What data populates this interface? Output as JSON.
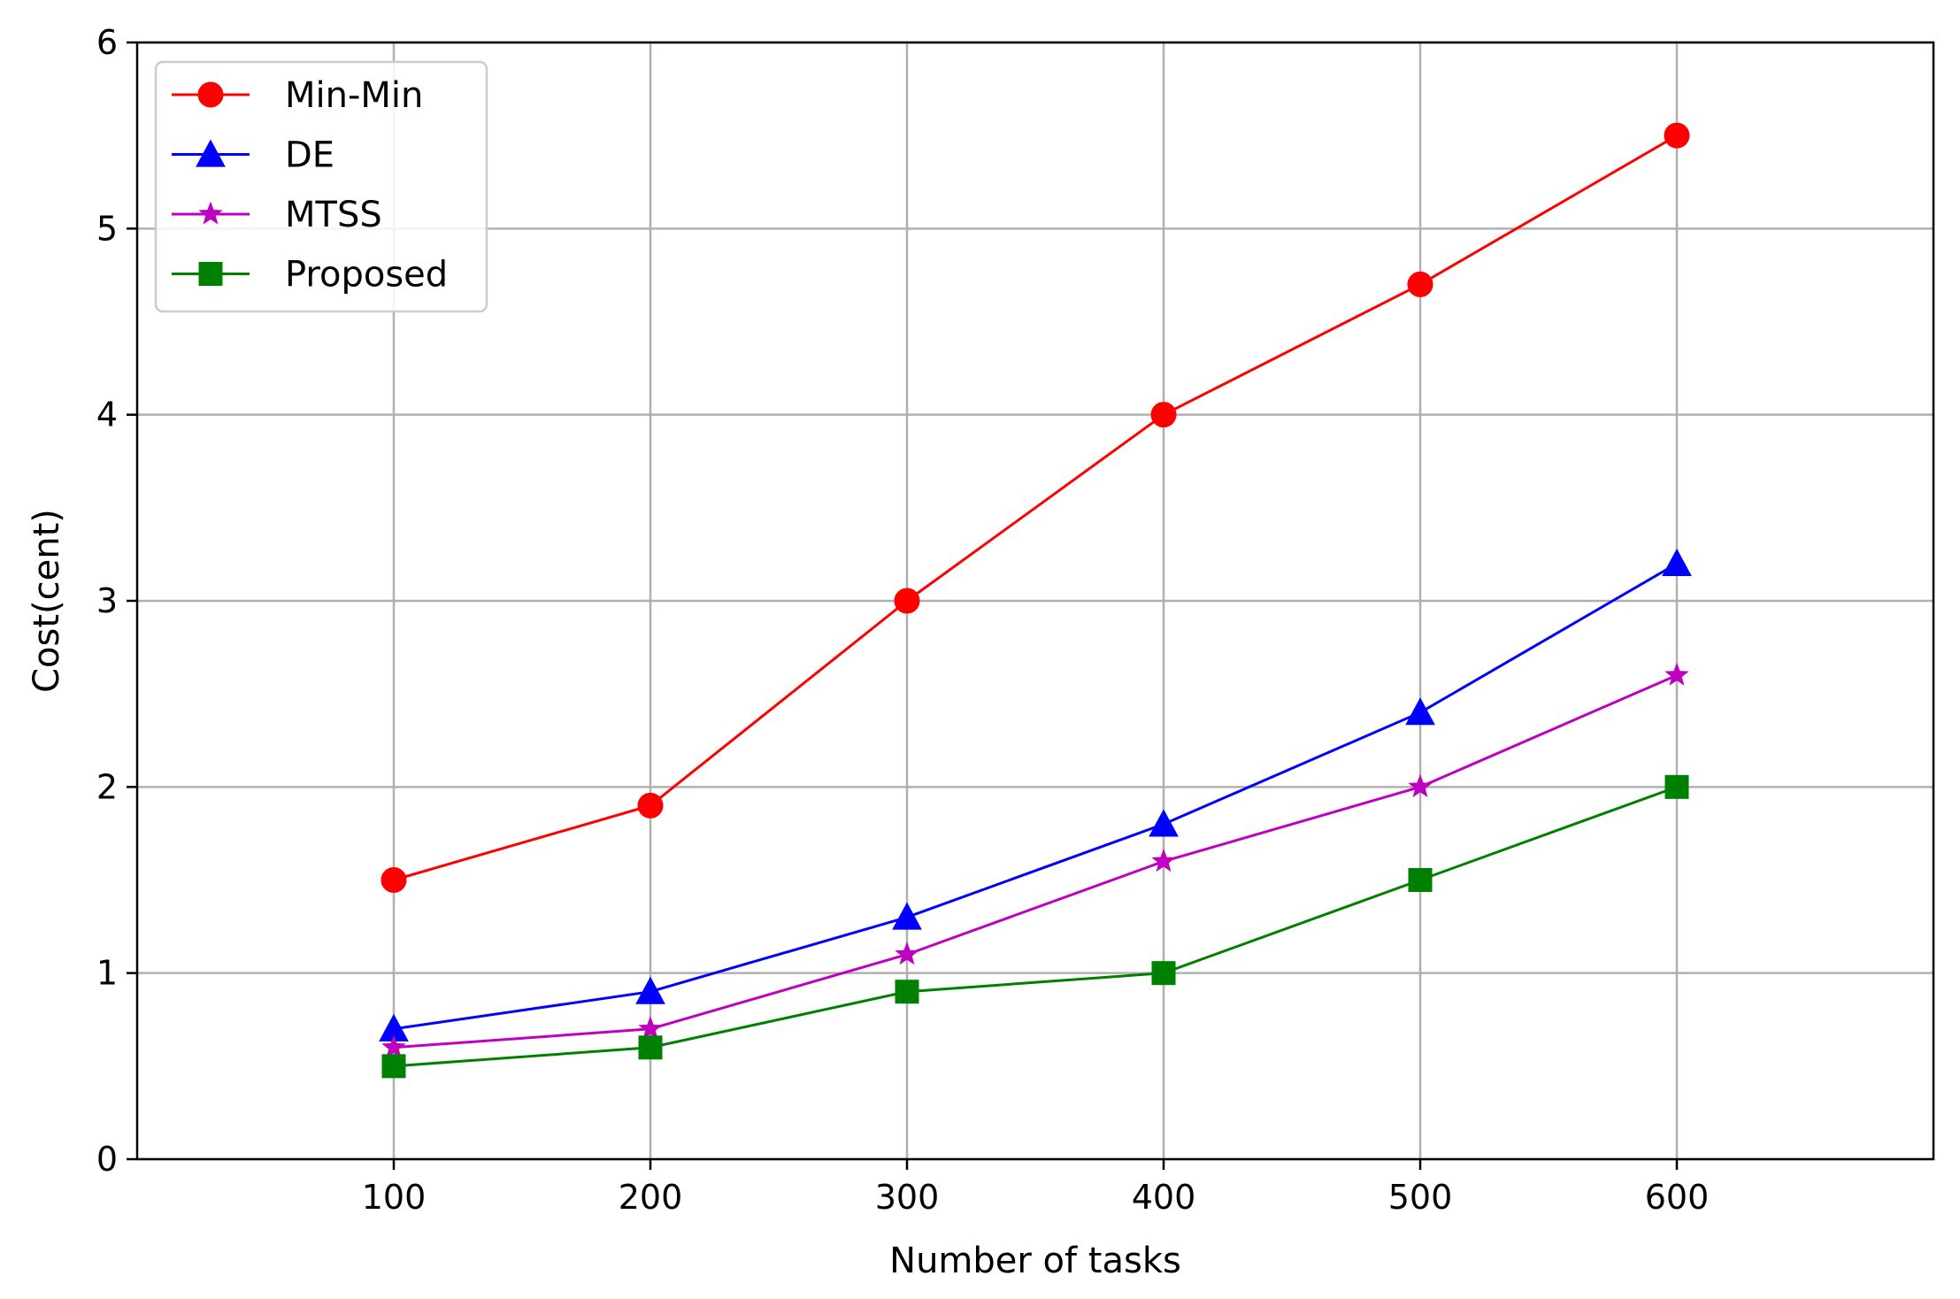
{
  "chart_data": {
    "type": "line",
    "title": "",
    "xlabel": "Number of tasks",
    "ylabel": "Cost(cent)",
    "x": [
      100,
      200,
      300,
      400,
      500,
      600
    ],
    "xticks": [
      "100",
      "200",
      "300",
      "400",
      "500",
      "600"
    ],
    "yticks": [
      "0",
      "1",
      "2",
      "3",
      "4",
      "5",
      "6"
    ],
    "xlim": [
      0,
      700
    ],
    "ylim": [
      0,
      6
    ],
    "grid": true,
    "legend_position": "top-left",
    "series": [
      {
        "name": "Min-Min",
        "color": "#ff0000",
        "marker": "circle",
        "values": [
          1.5,
          1.9,
          3.0,
          4.0,
          4.7,
          5.5
        ]
      },
      {
        "name": "DE",
        "color": "#0000ff",
        "marker": "triangle",
        "values": [
          0.7,
          0.9,
          1.3,
          1.8,
          2.4,
          3.2
        ]
      },
      {
        "name": "MTSS",
        "color": "#bf00bf",
        "marker": "star",
        "values": [
          0.6,
          0.7,
          1.1,
          1.6,
          2.0,
          2.6
        ]
      },
      {
        "name": "Proposed",
        "color": "#008000",
        "marker": "square",
        "values": [
          0.5,
          0.6,
          0.9,
          1.0,
          1.5,
          2.0
        ]
      }
    ]
  }
}
